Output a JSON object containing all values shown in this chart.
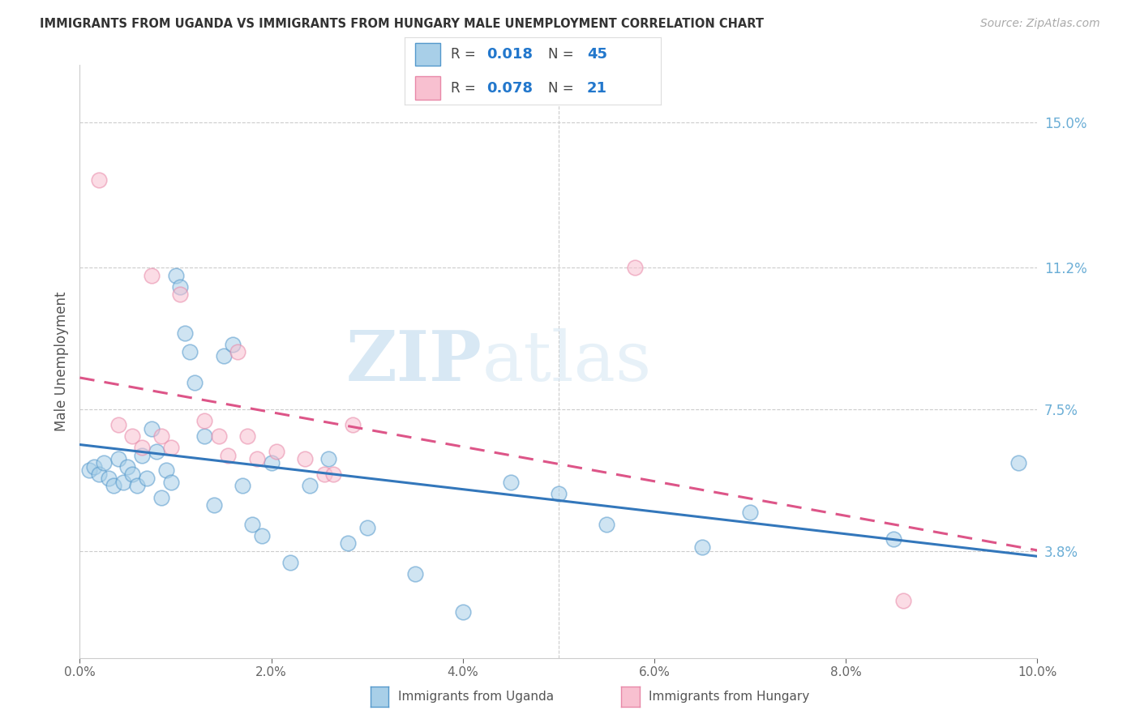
{
  "title": "IMMIGRANTS FROM UGANDA VS IMMIGRANTS FROM HUNGARY MALE UNEMPLOYMENT CORRELATION CHART",
  "source": "Source: ZipAtlas.com",
  "ylabel": "Male Unemployment",
  "y_ticks": [
    3.8,
    7.5,
    11.2,
    15.0
  ],
  "x_min": 0.0,
  "x_max": 10.0,
  "y_min": 1.0,
  "y_max": 16.5,
  "watermark_zip": "ZIP",
  "watermark_atlas": "atlas",
  "legend_blue_r": "0.018",
  "legend_blue_n": "45",
  "legend_pink_r": "0.078",
  "legend_pink_n": "21",
  "color_blue_fill": "#a8cfe8",
  "color_blue_edge": "#5599cc",
  "color_blue_line": "#3377bb",
  "color_pink_fill": "#f8c0d0",
  "color_pink_edge": "#e888a8",
  "color_pink_line": "#dd5588",
  "color_right_axis": "#6baed6",
  "uganda_x": [
    0.1,
    0.15,
    0.2,
    0.25,
    0.3,
    0.35,
    0.4,
    0.45,
    0.5,
    0.55,
    0.6,
    0.65,
    0.7,
    0.75,
    0.8,
    0.85,
    0.9,
    0.95,
    1.0,
    1.05,
    1.1,
    1.15,
    1.2,
    1.3,
    1.4,
    1.5,
    1.6,
    1.7,
    1.8,
    1.9,
    2.0,
    2.2,
    2.4,
    2.6,
    2.8,
    3.0,
    3.5,
    4.0,
    4.5,
    5.0,
    5.5,
    6.5,
    7.0,
    8.5,
    9.8
  ],
  "uganda_y": [
    5.9,
    6.0,
    5.8,
    6.1,
    5.7,
    5.5,
    6.2,
    5.6,
    6.0,
    5.8,
    5.5,
    6.3,
    5.7,
    7.0,
    6.4,
    5.2,
    5.9,
    5.6,
    11.0,
    10.7,
    9.5,
    9.0,
    8.2,
    6.8,
    5.0,
    8.9,
    9.2,
    5.5,
    4.5,
    4.2,
    6.1,
    3.5,
    5.5,
    6.2,
    4.0,
    4.4,
    3.2,
    2.2,
    5.6,
    5.3,
    4.5,
    3.9,
    4.8,
    4.1,
    6.1
  ],
  "hungary_x": [
    0.2,
    0.4,
    0.55,
    0.65,
    0.75,
    0.85,
    0.95,
    1.05,
    1.3,
    1.45,
    1.55,
    1.65,
    1.75,
    1.85,
    2.05,
    2.35,
    2.55,
    2.65,
    2.85,
    5.8,
    8.6
  ],
  "hungary_y": [
    13.5,
    7.1,
    6.8,
    6.5,
    11.0,
    6.8,
    6.5,
    10.5,
    7.2,
    6.8,
    6.3,
    9.0,
    6.8,
    6.2,
    6.4,
    6.2,
    5.8,
    5.8,
    7.1,
    11.2,
    2.5
  ]
}
